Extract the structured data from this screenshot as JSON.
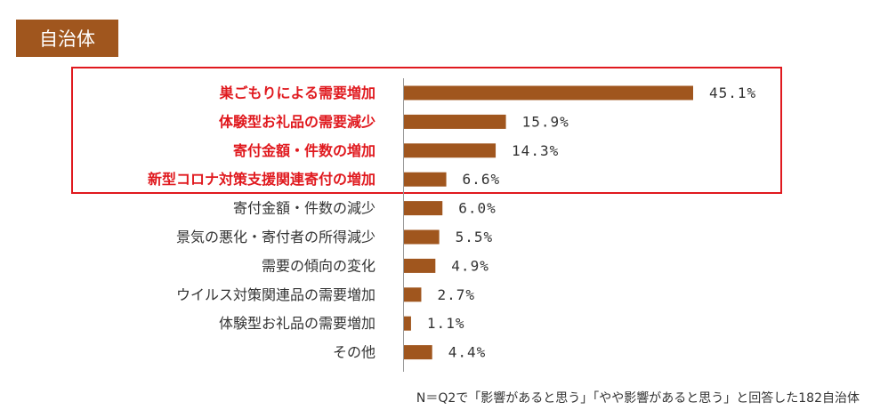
{
  "header": {
    "badge": "自治体"
  },
  "colors": {
    "bar": "#a0561e",
    "highlight_text": "#e0191e",
    "highlight_box": "#e0191e",
    "text": "#333333"
  },
  "chart_data": {
    "type": "bar",
    "orientation": "horizontal",
    "title": "自治体",
    "categories": [
      "巣ごもりによる需要増加",
      "体験型お礼品の需要減少",
      "寄付金額・件数の増加",
      "新型コロナ対策支援関連寄付の増加",
      "寄付金額・件数の減少",
      "景気の悪化・寄付者の所得減少",
      "需要の傾向の変化",
      "ウイルス対策関連品の需要増加",
      "体験型お礼品の需要増加",
      "その他"
    ],
    "values": [
      45.1,
      15.9,
      14.3,
      6.6,
      6.0,
      5.5,
      4.9,
      2.7,
      1.1,
      4.4
    ],
    "value_labels": [
      "45.1%",
      "15.9%",
      "14.3%",
      "6.6%",
      "6.0%",
      "5.5%",
      "4.9%",
      "2.7%",
      "1.1%",
      "4.4%"
    ],
    "highlighted": [
      true,
      true,
      true,
      true,
      false,
      false,
      false,
      false,
      false,
      false
    ],
    "unit": "%",
    "xlim": [
      0,
      100
    ],
    "grid": false,
    "footnote": "N＝Q2で「影響があると思う」「やや影響があると思う」と回答した182自治体"
  }
}
